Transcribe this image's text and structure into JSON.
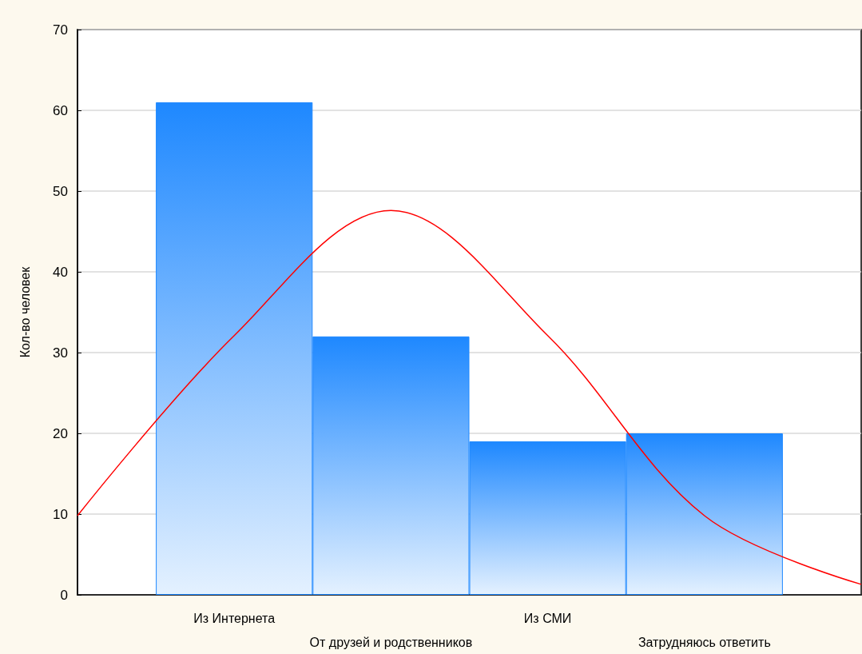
{
  "chart_data": {
    "type": "bar",
    "ylabel": "Кол-во человек",
    "categories": [
      null,
      "Из Интернета",
      "От друзей и родственников",
      "Из СМИ",
      "Затрудняюсь ответить",
      null
    ],
    "series": [
      {
        "color": "#1e88ff",
        "values": [
          null,
          61,
          32,
          19,
          20,
          null
        ]
      },
      {
        "type": "line",
        "color": "#ff0000",
        "values": [
          9.8,
          32.1,
          47.6,
          32.1,
          9.8,
          1.3
        ]
      }
    ],
    "ylim": [
      0,
      70
    ],
    "yticks": [
      0,
      10,
      20,
      30,
      40,
      50,
      60,
      70
    ],
    "grid": "y",
    "marker": "none",
    "line_style": "solid"
  }
}
